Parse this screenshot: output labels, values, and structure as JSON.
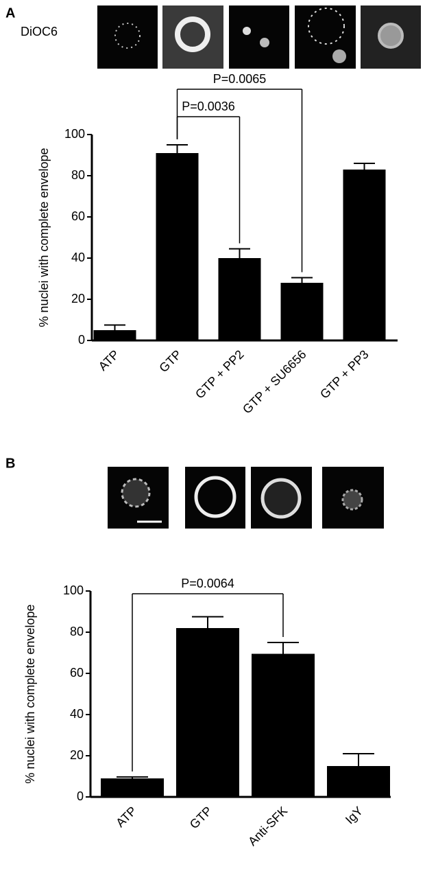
{
  "chart_data": [
    {
      "type": "bar",
      "panel": "A",
      "image_label": "DiOC6",
      "ylabel": "% nuclei with complete envelope",
      "categories": [
        "ATP",
        "GTP",
        "GTP + PP2",
        "GTP + SU6656",
        "GTP + PP3"
      ],
      "values": [
        5,
        91,
        40,
        28,
        83
      ],
      "errors": [
        2.5,
        4,
        4.5,
        2.5,
        3
      ],
      "color": "#000000",
      "ylim": [
        0,
        100
      ],
      "yticks": [
        0,
        20,
        40,
        60,
        80,
        100
      ],
      "annotations": [
        {
          "text": "P=0.0036",
          "between": [
            "GTP",
            "GTP + PP2"
          ]
        },
        {
          "text": "P=0.0065",
          "between": [
            "GTP",
            "GTP + SU6656"
          ]
        }
      ]
    },
    {
      "type": "bar",
      "panel": "B",
      "ylabel": "% nuclei with complete envelope",
      "categories": [
        "ATP",
        "GTP",
        "Anti-SFK",
        "IgY"
      ],
      "values": [
        9,
        82,
        69.5,
        15
      ],
      "errors": [
        0.7,
        5.5,
        5.5,
        6
      ],
      "color": "#000000",
      "ylim": [
        0,
        100
      ],
      "yticks": [
        0,
        20,
        40,
        60,
        80,
        100
      ],
      "annotations": [
        {
          "text": "P=0.0064",
          "between": [
            "ATP",
            "Anti-SFK"
          ]
        }
      ]
    }
  ]
}
